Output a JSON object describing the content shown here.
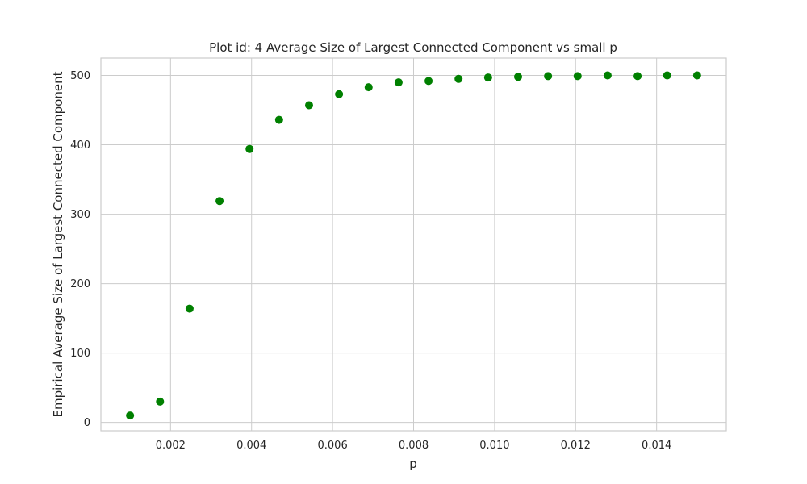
{
  "chart_data": {
    "type": "scatter",
    "title": "Plot id: 4 Average Size of Largest Connected Component vs small p",
    "xlabel": "p",
    "ylabel": "Empirical Average Size of Largest Connected Component",
    "xlim": [
      0.00028,
      0.01572
    ],
    "ylim": [
      -12,
      525
    ],
    "xticks": [
      0.002,
      0.004,
      0.006,
      0.008,
      0.01,
      0.012,
      0.014
    ],
    "xtick_labels": [
      "0.002",
      "0.004",
      "0.006",
      "0.008",
      "0.010",
      "0.012",
      "0.014"
    ],
    "yticks": [
      0,
      100,
      200,
      300,
      400,
      500
    ],
    "ytick_labels": [
      "0",
      "100",
      "200",
      "300",
      "400",
      "500"
    ],
    "grid": true,
    "marker_color": "#008000",
    "series": [
      {
        "x": [
          0.001,
          0.00174,
          0.00247,
          0.00321,
          0.00395,
          0.00468,
          0.00542,
          0.00616,
          0.00689,
          0.00763,
          0.00837,
          0.00911,
          0.00984,
          0.01058,
          0.01132,
          0.01205,
          0.01279,
          0.01353,
          0.01426,
          0.015
        ],
        "y": [
          10,
          30,
          164,
          319,
          394,
          436,
          457,
          473,
          483,
          490,
          492,
          495,
          497,
          498,
          499,
          499,
          500,
          499,
          500,
          500
        ]
      }
    ]
  }
}
